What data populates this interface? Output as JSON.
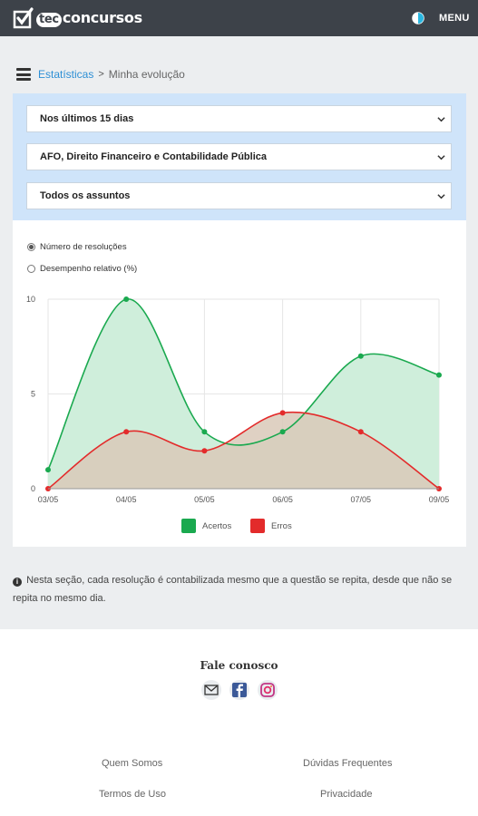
{
  "header": {
    "logo_badge": "tec",
    "logo_text": "concursos",
    "menu_label": "MENU"
  },
  "breadcrumb": {
    "link": "Estatísticas",
    "separator": ">",
    "current": "Minha evolução"
  },
  "filters": {
    "period": "Nos últimos 15 dias",
    "subject": "AFO, Direito Financeiro e Contabilidade Pública",
    "topic": "Todos os assuntos"
  },
  "mode_options": {
    "count": "Número de resoluções",
    "relative": "Desempenho relativo (%)",
    "selected": "count"
  },
  "chart_data": {
    "type": "area",
    "categories": [
      "03/05",
      "04/05",
      "05/05",
      "06/05",
      "07/05",
      "09/05"
    ],
    "series": [
      {
        "name": "Acertos",
        "values": [
          1,
          10,
          3,
          3,
          7,
          6
        ],
        "color": "#1aa94f",
        "fill": "#cfeedb"
      },
      {
        "name": "Erros",
        "values": [
          0,
          3,
          2,
          4,
          3,
          0
        ],
        "color": "#e32b2b",
        "fill": "#d9c9b8"
      }
    ],
    "ylim": [
      0,
      10
    ],
    "yticks": [
      0,
      5,
      10
    ],
    "grid": true,
    "legend_position": "bottom"
  },
  "note": {
    "text": "Nesta seção, cada resolução é contabilizada mesmo que a questão se repita, desde que não se repita no mesmo dia."
  },
  "footer": {
    "contact_title": "Fale conosco",
    "links": [
      "Quem Somos",
      "Dúvidas Frequentes",
      "Termos de Uso",
      "Privacidade"
    ]
  }
}
